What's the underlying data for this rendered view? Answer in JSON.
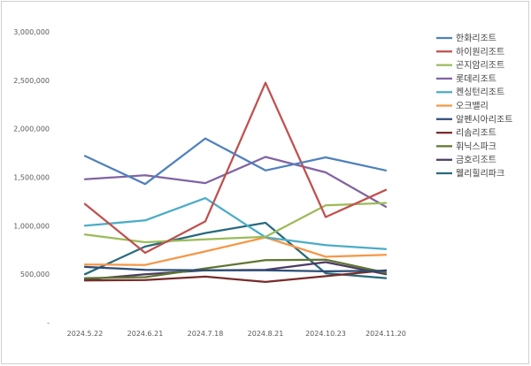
{
  "chart_data": {
    "type": "line",
    "title": "",
    "xlabel": "",
    "ylabel": "",
    "x": [
      "2024.5.22",
      "2024.6.21",
      "2024.7.18",
      "2024.8.21",
      "2024.10.23",
      "2024.11.20"
    ],
    "ylim": [
      0,
      3000000
    ],
    "yticks": [
      {
        "value": 0,
        "label": "-"
      },
      {
        "value": 500000,
        "label": "500,000"
      },
      {
        "value": 1000000,
        "label": "1,000,000"
      },
      {
        "value": 1500000,
        "label": "1,500,000"
      },
      {
        "value": 2000000,
        "label": "2,000,000"
      },
      {
        "value": 2500000,
        "label": "2,500,000"
      },
      {
        "value": 3000000,
        "label": "3,000,000"
      }
    ],
    "grid": false,
    "legend_position": "right",
    "series": [
      {
        "name": "한화리조트",
        "color": "#4f81bd",
        "values": [
          1720000,
          1430000,
          1900000,
          1570000,
          1705000,
          1570000
        ]
      },
      {
        "name": "하이원리조트",
        "color": "#c0504d",
        "values": [
          1225000,
          720000,
          1045000,
          2475000,
          1090000,
          1370000
        ]
      },
      {
        "name": "곤지암리조트",
        "color": "#9bbb59",
        "values": [
          910000,
          830000,
          860000,
          885000,
          1210000,
          1235000
        ]
      },
      {
        "name": "롯데리조트",
        "color": "#8064a2",
        "values": [
          1480000,
          1520000,
          1440000,
          1710000,
          1550000,
          1195000
        ]
      },
      {
        "name": "켄싱턴리조트",
        "color": "#4bacc6",
        "values": [
          1000000,
          1055000,
          1285000,
          880000,
          800000,
          760000
        ]
      },
      {
        "name": "오크밸리",
        "color": "#f79646",
        "values": [
          600000,
          595000,
          735000,
          880000,
          680000,
          700000
        ]
      },
      {
        "name": "알펜시아리조트",
        "color": "#2c4d75",
        "values": [
          575000,
          545000,
          540000,
          540000,
          530000,
          535000
        ]
      },
      {
        "name": "리솜리조트",
        "color": "#772c2a",
        "values": [
          435000,
          440000,
          475000,
          420000,
          480000,
          540000
        ]
      },
      {
        "name": "휘닉스파크",
        "color": "#5f7530",
        "values": [
          460000,
          470000,
          560000,
          645000,
          650000,
          515000
        ]
      },
      {
        "name": "금호리조트",
        "color": "#4d3b62",
        "values": [
          445000,
          500000,
          540000,
          545000,
          625000,
          500000
        ]
      },
      {
        "name": "웰리힐리파크",
        "color": "#276a7c",
        "values": [
          500000,
          785000,
          925000,
          1030000,
          510000,
          460000
        ]
      }
    ]
  }
}
